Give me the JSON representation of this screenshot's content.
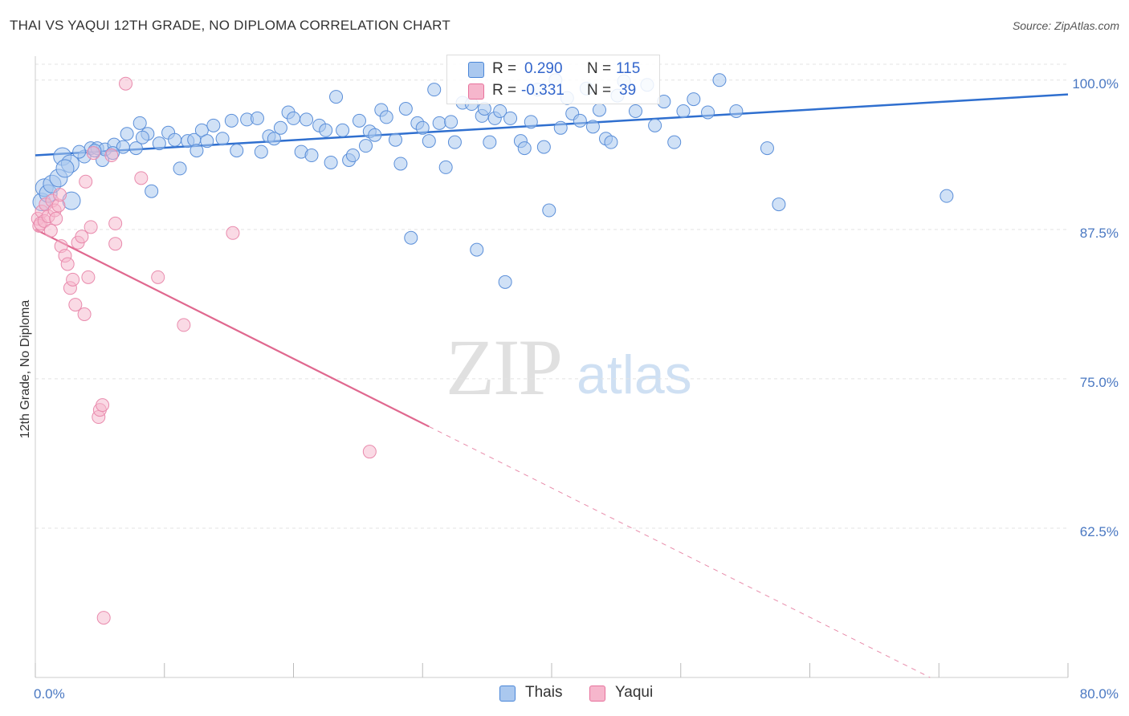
{
  "title": "THAI VS YAQUI 12TH GRADE, NO DIPLOMA CORRELATION CHART",
  "source": "Source: ZipAtlas.com",
  "watermark": {
    "zip": "ZIP",
    "atlas": "atlas"
  },
  "colors": {
    "thais": "#4a86d8",
    "yaqui": "#e7729c",
    "thais_fill": "#aac8ef",
    "yaqui_fill": "#f6b6cc",
    "axis_text": "#4a78c2"
  },
  "legend": {
    "rows": [
      {
        "r_label": "R =",
        "r_value": "0.290",
        "n_label": "N =",
        "n_value": "115"
      },
      {
        "r_label": "R =",
        "r_value": "-0.331",
        "n_label": "N =",
        "n_value": "39"
      }
    ]
  },
  "bottom_legend": [
    "Thais",
    "Yaqui"
  ],
  "chart_data": {
    "type": "scatter",
    "title": "THAI VS YAQUI 12TH GRADE, NO DIPLOMA CORRELATION CHART",
    "xlabel": "",
    "ylabel": "12th Grade, No Diploma",
    "xlim": [
      0,
      80
    ],
    "ylim": [
      50,
      102
    ],
    "x_tick_labels": [
      "0.0%",
      "80.0%"
    ],
    "y_ticks": [
      62.5,
      75.0,
      87.5,
      100.0
    ],
    "y_tick_labels": [
      "62.5%",
      "75.0%",
      "87.5%",
      "100.0%"
    ],
    "grid": true,
    "legend_position": "top-center",
    "series": [
      {
        "name": "Thais",
        "r": 0.29,
        "n": 115,
        "trend": {
          "x": [
            0,
            80
          ],
          "y": [
            93.7,
            98.8
          ]
        },
        "points": [
          [
            0.5,
            89.8
          ],
          [
            0.7,
            91.0
          ],
          [
            1.0,
            90.5
          ],
          [
            1.3,
            91.3
          ],
          [
            1.8,
            91.8
          ],
          [
            2.1,
            93.6
          ],
          [
            2.8,
            89.9
          ],
          [
            2.7,
            93.0
          ],
          [
            3.8,
            93.6
          ],
          [
            4.3,
            94.3
          ],
          [
            4.8,
            94.3
          ],
          [
            5.2,
            93.3
          ],
          [
            5.4,
            94.2
          ],
          [
            6.1,
            94.6
          ],
          [
            6.8,
            94.4
          ],
          [
            7.1,
            95.5
          ],
          [
            7.8,
            94.3
          ],
          [
            8.1,
            96.4
          ],
          [
            8.7,
            95.5
          ],
          [
            9.0,
            90.7
          ],
          [
            9.6,
            94.7
          ],
          [
            10.3,
            95.6
          ],
          [
            10.8,
            95.0
          ],
          [
            11.2,
            92.6
          ],
          [
            11.8,
            94.9
          ],
          [
            12.3,
            95.0
          ],
          [
            12.9,
            95.8
          ],
          [
            13.3,
            94.9
          ],
          [
            13.8,
            96.2
          ],
          [
            14.5,
            95.1
          ],
          [
            15.2,
            96.6
          ],
          [
            15.6,
            94.1
          ],
          [
            16.4,
            96.7
          ],
          [
            17.2,
            96.8
          ],
          [
            17.5,
            94.0
          ],
          [
            18.1,
            95.3
          ],
          [
            18.5,
            95.1
          ],
          [
            19.0,
            96.0
          ],
          [
            19.6,
            97.3
          ],
          [
            20.0,
            96.8
          ],
          [
            20.6,
            94.0
          ],
          [
            21.0,
            96.7
          ],
          [
            21.4,
            93.7
          ],
          [
            22.0,
            96.2
          ],
          [
            22.5,
            95.8
          ],
          [
            22.9,
            93.1
          ],
          [
            23.3,
            98.6
          ],
          [
            23.8,
            95.8
          ],
          [
            24.3,
            93.3
          ],
          [
            24.6,
            93.7
          ],
          [
            25.1,
            96.6
          ],
          [
            25.6,
            94.5
          ],
          [
            25.9,
            95.7
          ],
          [
            26.3,
            95.4
          ],
          [
            26.8,
            97.5
          ],
          [
            27.2,
            96.9
          ],
          [
            27.9,
            95.0
          ],
          [
            28.3,
            93.0
          ],
          [
            28.7,
            97.6
          ],
          [
            29.1,
            86.8
          ],
          [
            29.6,
            96.4
          ],
          [
            30.0,
            96.0
          ],
          [
            30.5,
            94.9
          ],
          [
            30.9,
            99.2
          ],
          [
            31.3,
            96.4
          ],
          [
            31.8,
            92.7
          ],
          [
            32.2,
            96.5
          ],
          [
            32.5,
            94.8
          ],
          [
            33.1,
            98.1
          ],
          [
            33.8,
            98.0
          ],
          [
            34.2,
            85.8
          ],
          [
            34.6,
            97.0
          ],
          [
            35.2,
            94.8
          ],
          [
            35.6,
            96.8
          ],
          [
            36.0,
            97.4
          ],
          [
            36.4,
            83.1
          ],
          [
            36.8,
            96.8
          ],
          [
            37.6,
            94.9
          ],
          [
            37.9,
            94.3
          ],
          [
            38.4,
            96.5
          ],
          [
            38.9,
            99.2
          ],
          [
            39.4,
            94.4
          ],
          [
            39.8,
            89.1
          ],
          [
            40.3,
            100.0
          ],
          [
            40.7,
            96.0
          ],
          [
            41.2,
            98.5
          ],
          [
            41.6,
            97.2
          ],
          [
            42.2,
            96.6
          ],
          [
            42.7,
            99.3
          ],
          [
            43.2,
            96.1
          ],
          [
            43.7,
            97.5
          ],
          [
            44.2,
            95.1
          ],
          [
            44.6,
            94.8
          ],
          [
            45.1,
            98.7
          ],
          [
            45.6,
            99.9
          ],
          [
            46.5,
            97.4
          ],
          [
            47.4,
            99.6
          ],
          [
            48.0,
            96.2
          ],
          [
            48.7,
            98.2
          ],
          [
            49.5,
            94.8
          ],
          [
            50.2,
            97.4
          ],
          [
            51.0,
            98.4
          ],
          [
            52.1,
            97.3
          ],
          [
            53.0,
            100.0
          ],
          [
            54.3,
            97.4
          ],
          [
            56.7,
            94.3
          ],
          [
            57.6,
            89.6
          ],
          [
            70.6,
            90.3
          ],
          [
            34.8,
            97.6
          ],
          [
            12.5,
            94.1
          ],
          [
            8.3,
            95.2
          ],
          [
            4.6,
            94.1
          ],
          [
            6.0,
            93.9
          ],
          [
            3.4,
            94.0
          ],
          [
            2.3,
            92.6
          ]
        ]
      },
      {
        "name": "Yaqui",
        "r": -0.331,
        "n": 39,
        "trend": {
          "x": [
            0,
            30.5
          ],
          "y": [
            87.5,
            71.0
          ]
        },
        "points": [
          [
            0.2,
            88.4
          ],
          [
            0.3,
            87.8
          ],
          [
            0.4,
            88.0
          ],
          [
            0.5,
            89.0
          ],
          [
            0.7,
            88.2
          ],
          [
            0.8,
            89.6
          ],
          [
            1.0,
            88.6
          ],
          [
            1.2,
            87.4
          ],
          [
            1.3,
            89.9
          ],
          [
            1.5,
            89.1
          ],
          [
            1.6,
            88.4
          ],
          [
            1.8,
            89.5
          ],
          [
            2.0,
            86.1
          ],
          [
            2.3,
            85.3
          ],
          [
            2.5,
            84.6
          ],
          [
            2.7,
            82.6
          ],
          [
            2.9,
            83.3
          ],
          [
            3.1,
            81.2
          ],
          [
            3.3,
            86.4
          ],
          [
            3.6,
            86.9
          ],
          [
            3.8,
            80.4
          ],
          [
            3.9,
            91.5
          ],
          [
            4.1,
            83.5
          ],
          [
            4.3,
            87.7
          ],
          [
            4.5,
            93.9
          ],
          [
            4.9,
            71.8
          ],
          [
            5.0,
            72.4
          ],
          [
            5.2,
            72.8
          ],
          [
            5.3,
            55.0
          ],
          [
            5.9,
            93.7
          ],
          [
            6.2,
            86.3
          ],
          [
            6.2,
            88.0
          ],
          [
            7.0,
            99.7
          ],
          [
            8.2,
            91.8
          ],
          [
            9.5,
            83.5
          ],
          [
            11.5,
            79.5
          ],
          [
            15.3,
            87.2
          ],
          [
            25.9,
            68.9
          ],
          [
            1.9,
            90.4
          ]
        ]
      }
    ]
  }
}
